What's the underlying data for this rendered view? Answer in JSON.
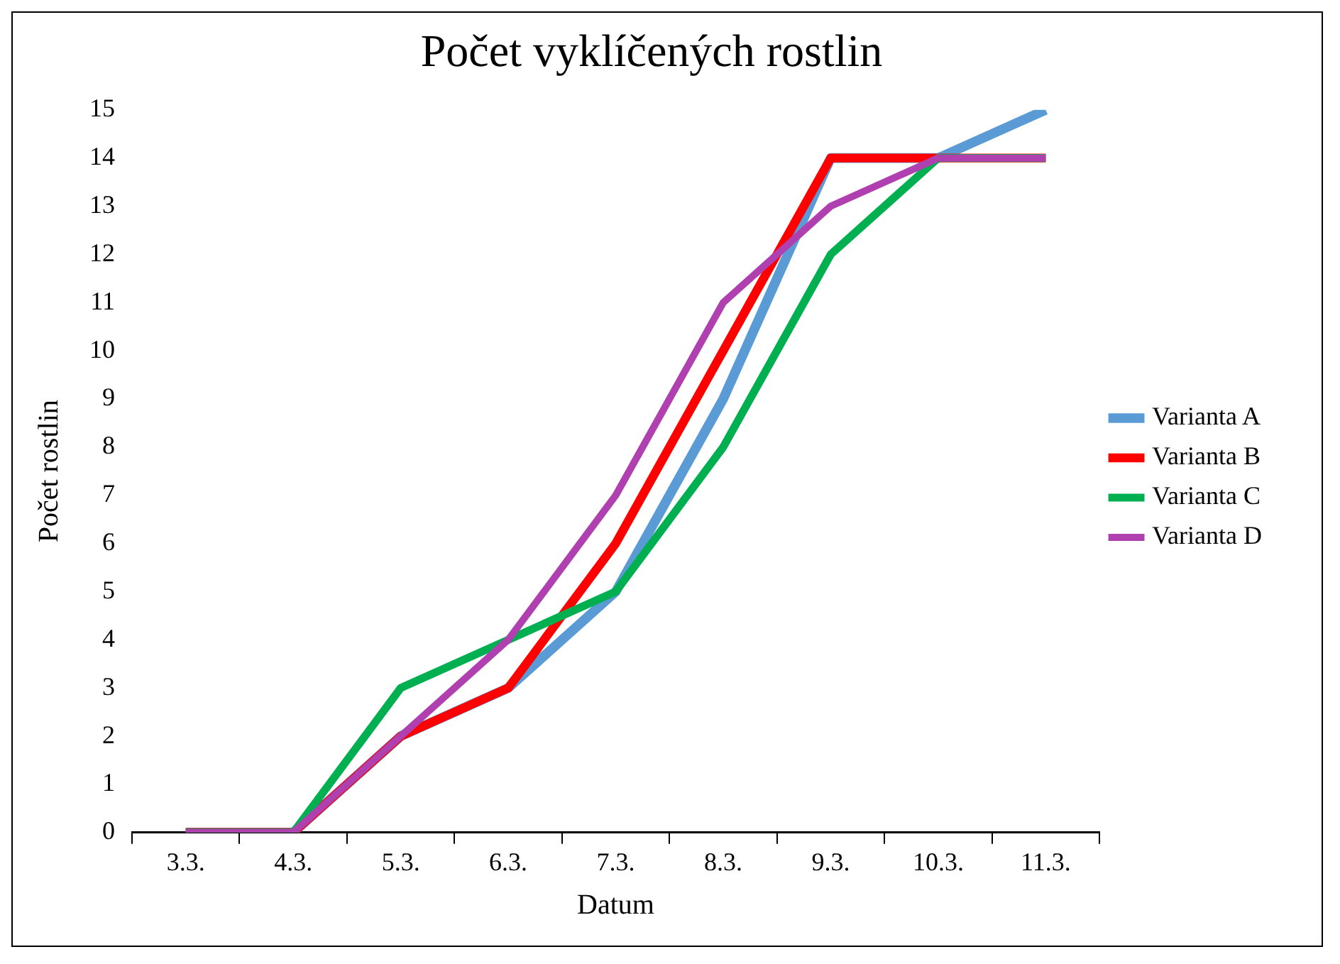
{
  "chart_data": {
    "type": "line",
    "title": "Počet vyklíčených rostlin",
    "xlabel": "Datum",
    "ylabel": "Počet rostlin",
    "categories": [
      "3.3.",
      "4.3.",
      "5.3.",
      "6.3.",
      "7.3.",
      "8.3.",
      "9.3.",
      "10.3.",
      "11.3."
    ],
    "series": [
      {
        "name": "Varianta A",
        "color": "#5b9bd5",
        "values": [
          0,
          0,
          2,
          3,
          5,
          9,
          14,
          14,
          15
        ]
      },
      {
        "name": "Varianta B",
        "color": "#ff0000",
        "values": [
          0,
          0,
          2,
          3,
          6,
          10,
          14,
          14,
          14
        ]
      },
      {
        "name": "Varianta C",
        "color": "#00b050",
        "values": [
          0,
          0,
          3,
          4,
          5,
          8,
          12,
          14,
          14
        ]
      },
      {
        "name": "Varianta D",
        "color": "#b040b0",
        "values": [
          0,
          0,
          2,
          4,
          7,
          11,
          13,
          14,
          14
        ]
      }
    ],
    "ylim": [
      0,
      15
    ],
    "yticks": [
      0,
      1,
      2,
      3,
      4,
      5,
      6,
      7,
      8,
      9,
      10,
      11,
      12,
      13,
      14,
      15
    ],
    "legend": "right",
    "line_style": "solid"
  }
}
